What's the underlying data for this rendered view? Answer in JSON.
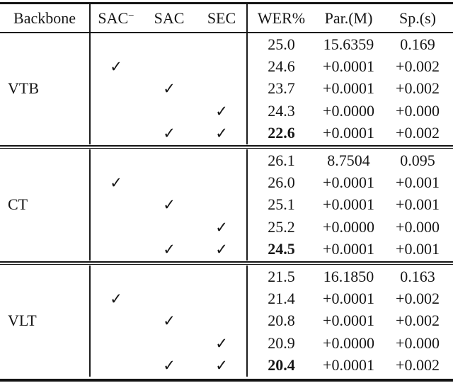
{
  "table": {
    "check_glyph": "✓",
    "columns": {
      "backbone": "Backbone",
      "sac_minus_base": "SAC",
      "sac_minus_sup": "−",
      "sac": "SAC",
      "sec": "SEC",
      "wer": "WER%",
      "par": "Par.(M)",
      "sp": "Sp.(s)"
    },
    "groups": [
      {
        "backbone": "VTB",
        "rows": [
          {
            "sac_minus": false,
            "sac": false,
            "sec": false,
            "wer": "25.0",
            "bold": false,
            "par": "15.6359",
            "sp": "0.169"
          },
          {
            "sac_minus": true,
            "sac": false,
            "sec": false,
            "wer": "24.6",
            "bold": false,
            "par": "+0.0001",
            "sp": "+0.002"
          },
          {
            "sac_minus": false,
            "sac": true,
            "sec": false,
            "wer": "23.7",
            "bold": false,
            "par": "+0.0001",
            "sp": "+0.002"
          },
          {
            "sac_minus": false,
            "sac": false,
            "sec": true,
            "wer": "24.3",
            "bold": false,
            "par": "+0.0000",
            "sp": "+0.000"
          },
          {
            "sac_minus": false,
            "sac": true,
            "sec": true,
            "wer": "22.6",
            "bold": true,
            "par": "+0.0001",
            "sp": "+0.002"
          }
        ]
      },
      {
        "backbone": "CT",
        "rows": [
          {
            "sac_minus": false,
            "sac": false,
            "sec": false,
            "wer": "26.1",
            "bold": false,
            "par": "8.7504",
            "sp": "0.095"
          },
          {
            "sac_minus": true,
            "sac": false,
            "sec": false,
            "wer": "26.0",
            "bold": false,
            "par": "+0.0001",
            "sp": "+0.001"
          },
          {
            "sac_minus": false,
            "sac": true,
            "sec": false,
            "wer": "25.1",
            "bold": false,
            "par": "+0.0001",
            "sp": "+0.001"
          },
          {
            "sac_minus": false,
            "sac": false,
            "sec": true,
            "wer": "25.2",
            "bold": false,
            "par": "+0.0000",
            "sp": "+0.000"
          },
          {
            "sac_minus": false,
            "sac": true,
            "sec": true,
            "wer": "24.5",
            "bold": true,
            "par": "+0.0001",
            "sp": "+0.001"
          }
        ]
      },
      {
        "backbone": "VLT",
        "rows": [
          {
            "sac_minus": false,
            "sac": false,
            "sec": false,
            "wer": "21.5",
            "bold": false,
            "par": "16.1850",
            "sp": "0.163"
          },
          {
            "sac_minus": true,
            "sac": false,
            "sec": false,
            "wer": "21.4",
            "bold": false,
            "par": "+0.0001",
            "sp": "+0.002"
          },
          {
            "sac_minus": false,
            "sac": true,
            "sec": false,
            "wer": "20.8",
            "bold": false,
            "par": "+0.0001",
            "sp": "+0.002"
          },
          {
            "sac_minus": false,
            "sac": false,
            "sec": true,
            "wer": "20.9",
            "bold": false,
            "par": "+0.0000",
            "sp": "+0.000"
          },
          {
            "sac_minus": false,
            "sac": true,
            "sec": true,
            "wer": "20.4",
            "bold": true,
            "par": "+0.0001",
            "sp": "+0.002"
          }
        ]
      }
    ]
  }
}
